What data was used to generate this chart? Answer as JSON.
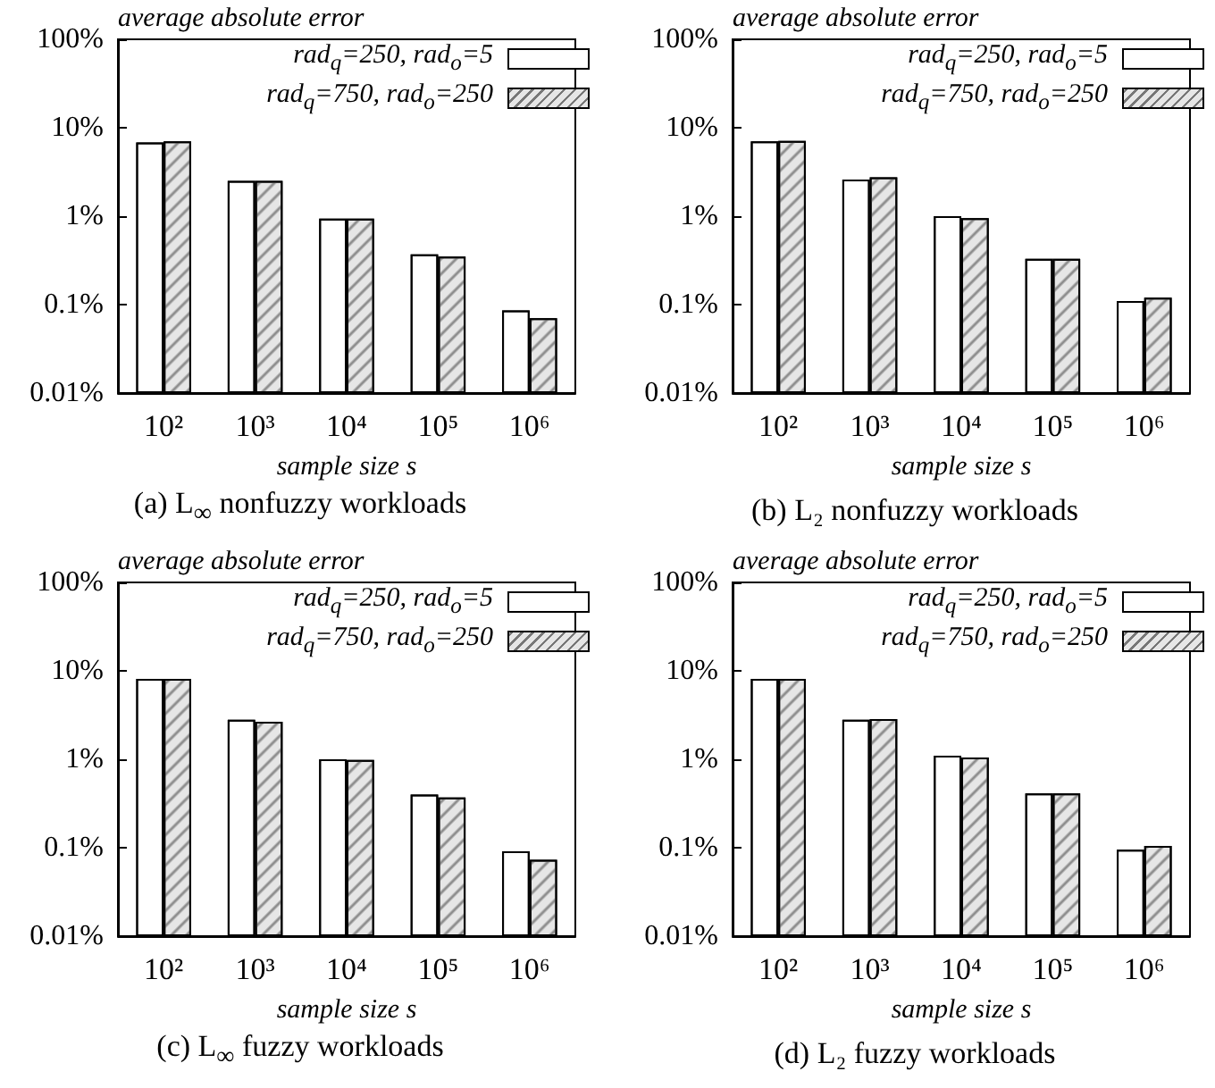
{
  "chart_data": [
    {
      "type": "bar",
      "ylabel": "average absolute error",
      "xlabel": "sample size s",
      "categories": [
        "10²",
        "10³",
        "10⁴",
        "10⁵",
        "10⁶"
      ],
      "log": "y",
      "ylim": [
        0.01,
        100
      ],
      "yticks": [
        {
          "value": 0.01,
          "label": "0.01%"
        },
        {
          "value": 0.1,
          "label": "0.1%"
        },
        {
          "value": 1,
          "label": "1%"
        },
        {
          "value": 10,
          "label": "10%"
        },
        {
          "value": 100,
          "label": "100%"
        }
      ],
      "grid": false,
      "legend": "top right",
      "annotations": [
        "(a) L$_{∞}$ nonfuzzy workloads"
      ],
      "series": [
        {
          "name": "rad$_{q}$=250, rad$_{o}$=5",
          "color": "#ffffff",
          "values": [
            6.8,
            2.5,
            0.94,
            0.37,
            0.086
          ]
        },
        {
          "name": "rad$_{q}$=750, rad$_{o}$=250",
          "color": "#e6e6e6",
          "values": [
            7.0,
            2.5,
            0.94,
            0.35,
            0.07
          ]
        }
      ]
    },
    {
      "type": "bar",
      "ylabel": "average absolute error",
      "xlabel": "sample size s",
      "categories": [
        "10²",
        "10³",
        "10⁴",
        "10⁵",
        "10⁶"
      ],
      "log": "y",
      "ylim": [
        0.01,
        100
      ],
      "yticks": [
        {
          "value": 0.01,
          "label": "0.01%"
        },
        {
          "value": 0.1,
          "label": "0.1%"
        },
        {
          "value": 1,
          "label": "1%"
        },
        {
          "value": 10,
          "label": "10%"
        },
        {
          "value": 100,
          "label": "100%"
        }
      ],
      "grid": false,
      "legend": "top right",
      "annotations": [
        "(b) L₂ nonfuzzy workloads"
      ],
      "series": [
        {
          "name": "rad$_{q}$=250, rad$_{o}$=5",
          "color": "#ffffff",
          "values": [
            7.0,
            2.6,
            1.0,
            0.33,
            0.11
          ]
        },
        {
          "name": "rad$_{q}$=750, rad$_{o}$=250",
          "color": "#e6e6e6",
          "values": [
            7.1,
            2.75,
            0.95,
            0.33,
            0.12
          ]
        }
      ]
    },
    {
      "type": "bar",
      "ylabel": "average absolute error",
      "xlabel": "sample size s",
      "categories": [
        "10²",
        "10³",
        "10⁴",
        "10⁵",
        "10⁶"
      ],
      "log": "y",
      "ylim": [
        0.01,
        100
      ],
      "yticks": [
        {
          "value": 0.01,
          "label": "0.01%"
        },
        {
          "value": 0.1,
          "label": "0.1%"
        },
        {
          "value": 1,
          "label": "1%"
        },
        {
          "value": 10,
          "label": "10%"
        },
        {
          "value": 100,
          "label": "100%"
        }
      ],
      "grid": false,
      "legend": "top right",
      "annotations": [
        "(c) L$_{∞}$ fuzzy workloads"
      ],
      "series": [
        {
          "name": "rad$_{q}$=250, rad$_{o}$=5",
          "color": "#ffffff",
          "values": [
            8.1,
            2.8,
            1.0,
            0.4,
            0.091
          ]
        },
        {
          "name": "rad$_{q}$=750, rad$_{o}$=250",
          "color": "#e6e6e6",
          "values": [
            8.1,
            2.65,
            0.98,
            0.37,
            0.073
          ]
        }
      ]
    },
    {
      "type": "bar",
      "ylabel": "average absolute error",
      "xlabel": "sample size s",
      "categories": [
        "10²",
        "10³",
        "10⁴",
        "10⁵",
        "10⁶"
      ],
      "log": "y",
      "ylim": [
        0.01,
        100
      ],
      "yticks": [
        {
          "value": 0.01,
          "label": "0.01%"
        },
        {
          "value": 0.1,
          "label": "0.1%"
        },
        {
          "value": 1,
          "label": "1%"
        },
        {
          "value": 10,
          "label": "10%"
        },
        {
          "value": 100,
          "label": "100%"
        }
      ],
      "grid": false,
      "legend": "top right",
      "annotations": [
        "(d) L₂ fuzzy workloads"
      ],
      "series": [
        {
          "name": "rad$_{q}$=250, rad$_{o}$=5",
          "color": "#ffffff",
          "values": [
            8.1,
            2.8,
            1.1,
            0.41,
            0.095
          ]
        },
        {
          "name": "rad$_{q}$=750, rad$_{o}$=250",
          "color": "#e6e6e6",
          "values": [
            8.1,
            2.85,
            1.05,
            0.41,
            0.105
          ]
        }
      ]
    }
  ]
}
